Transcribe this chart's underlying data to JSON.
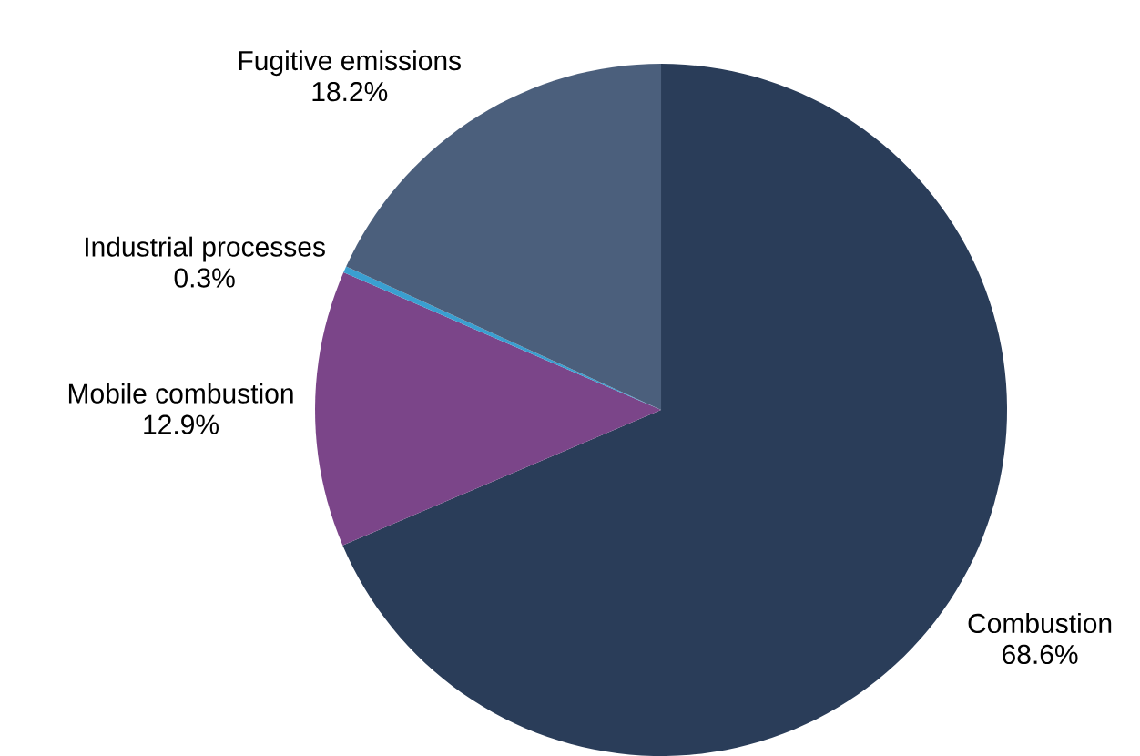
{
  "chart_data": {
    "type": "pie",
    "categories": [
      "Combustion",
      "Mobile combustion",
      "Industrial processes",
      "Fugitive emissions"
    ],
    "values": [
      68.6,
      12.9,
      0.3,
      18.2
    ],
    "value_labels": [
      "68.6%",
      "12.9%",
      "0.3%",
      "18.2%"
    ],
    "colors": [
      "#2a3d59",
      "#7b4589",
      "#3a9fd0",
      "#4b5f7c"
    ],
    "legend": false
  }
}
